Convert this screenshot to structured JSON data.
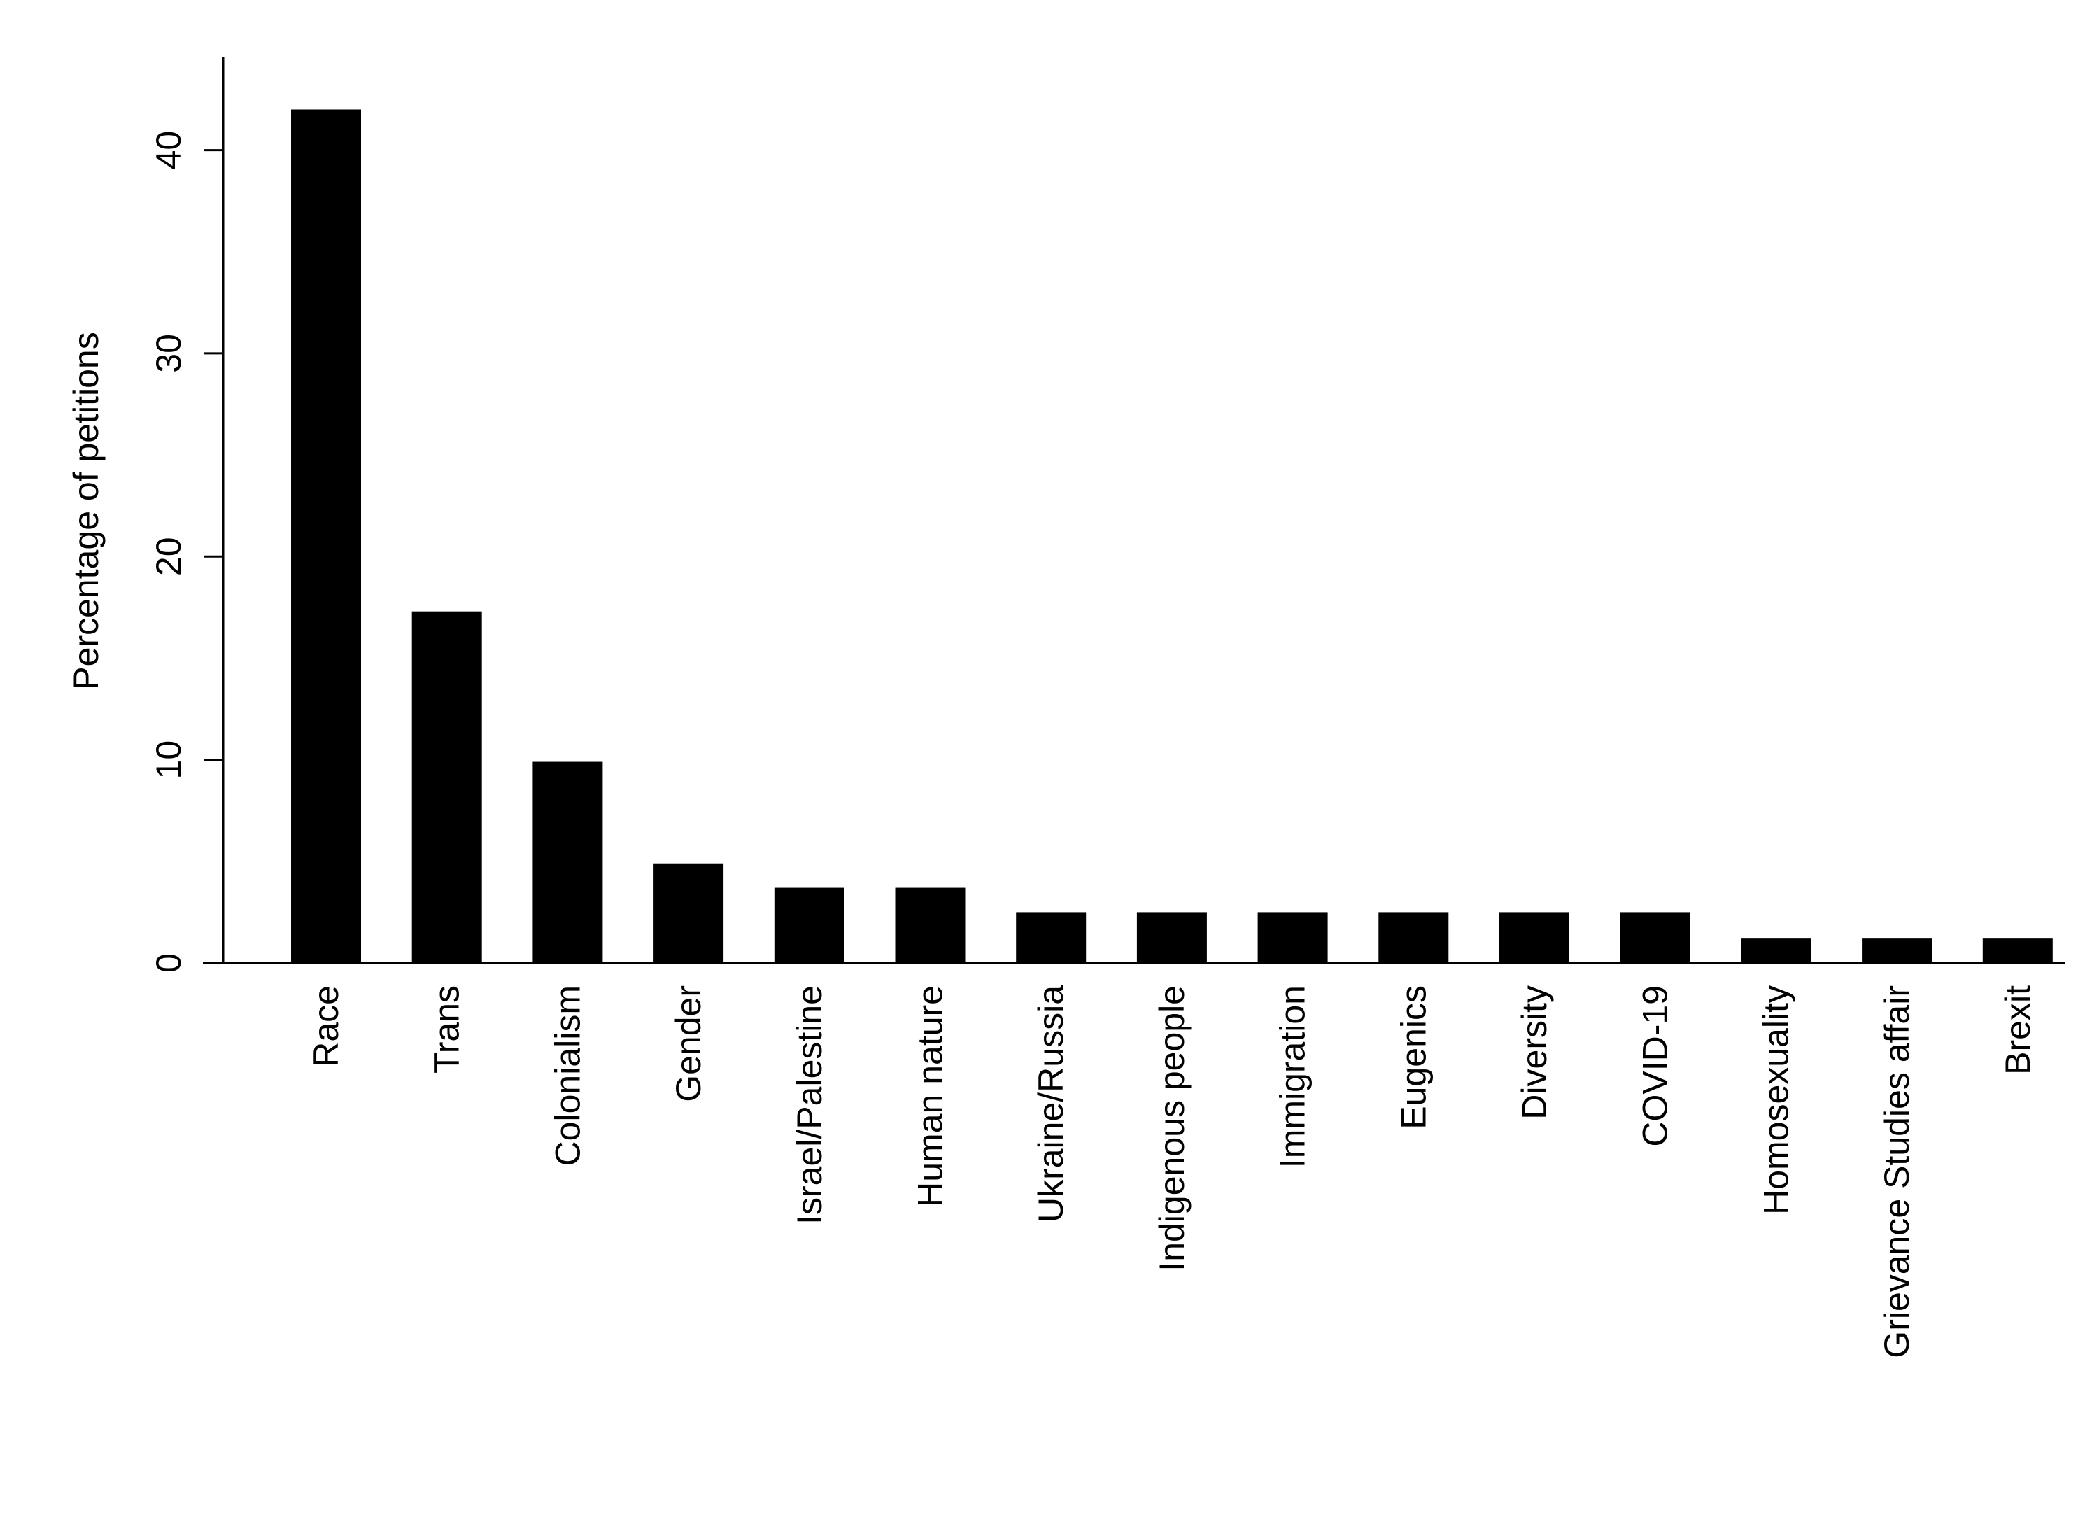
{
  "chart_data": {
    "type": "bar",
    "y_label": "Percentage of petitions",
    "categories": [
      "Race",
      "Trans",
      "Colonialism",
      "Gender",
      "Israel/Palestine",
      "Human nature",
      "Ukraine/Russia",
      "Indigenous people",
      "Immigration",
      "Eugenics",
      "Diversity",
      "COVID-19",
      "Homosexuality",
      "Grievance Studies affair",
      "Brexit"
    ],
    "values": [
      42,
      17.3,
      9.9,
      4.9,
      3.7,
      3.7,
      2.5,
      2.5,
      2.5,
      2.5,
      2.5,
      2.5,
      1.2,
      1.2,
      1.2
    ],
    "color": "#000000",
    "ylim": [
      0,
      44.6
    ],
    "yticks": [
      0,
      10,
      20,
      30,
      40
    ],
    "grid": false
  }
}
